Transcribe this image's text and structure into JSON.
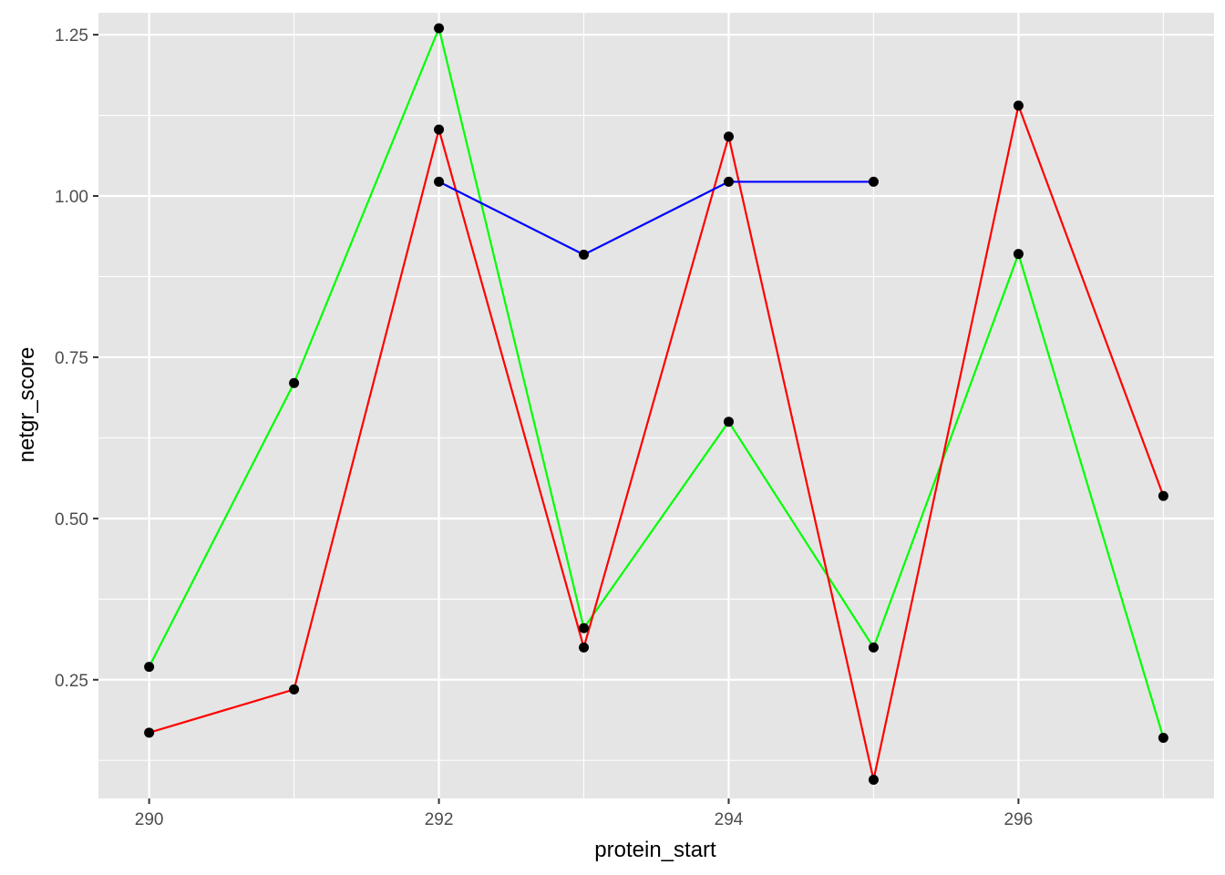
{
  "chart_data": {
    "type": "line",
    "title": "",
    "xlabel": "protein_start",
    "ylabel": "netgr_score",
    "xlim": [
      289.65,
      297.35
    ],
    "ylim": [
      0.066,
      1.284
    ],
    "x_ticks": [
      290,
      292,
      294,
      296
    ],
    "x_tick_labels": [
      "290",
      "292",
      "294",
      "296"
    ],
    "y_ticks": [
      0.25,
      0.5,
      0.75,
      1.0,
      1.25
    ],
    "y_tick_labels": [
      "0.25",
      "0.50",
      "0.75",
      "1.00",
      "1.25"
    ],
    "grid": true,
    "legend": "none",
    "panel_background": "#e5e5e5",
    "point_color": "#000000",
    "series": [
      {
        "color": "#00ff00",
        "points": [
          [
            290,
            0.27
          ],
          [
            291,
            0.71
          ],
          [
            292,
            1.26
          ],
          [
            293,
            0.33
          ],
          [
            294,
            0.65
          ],
          [
            295,
            0.3
          ],
          [
            296,
            0.91
          ],
          [
            297,
            0.16
          ]
        ]
      },
      {
        "color": "#ff0000",
        "points": [
          [
            290,
            0.168
          ],
          [
            291,
            0.235
          ],
          [
            292,
            1.103
          ],
          [
            293,
            0.3
          ],
          [
            294,
            1.092
          ],
          [
            295,
            0.095
          ],
          [
            296,
            1.14
          ],
          [
            297,
            0.535
          ]
        ]
      },
      {
        "color": "#0000ff",
        "points": [
          [
            292,
            1.022
          ],
          [
            293,
            0.909
          ],
          [
            294,
            1.022
          ],
          [
            295,
            1.022
          ]
        ]
      }
    ]
  }
}
